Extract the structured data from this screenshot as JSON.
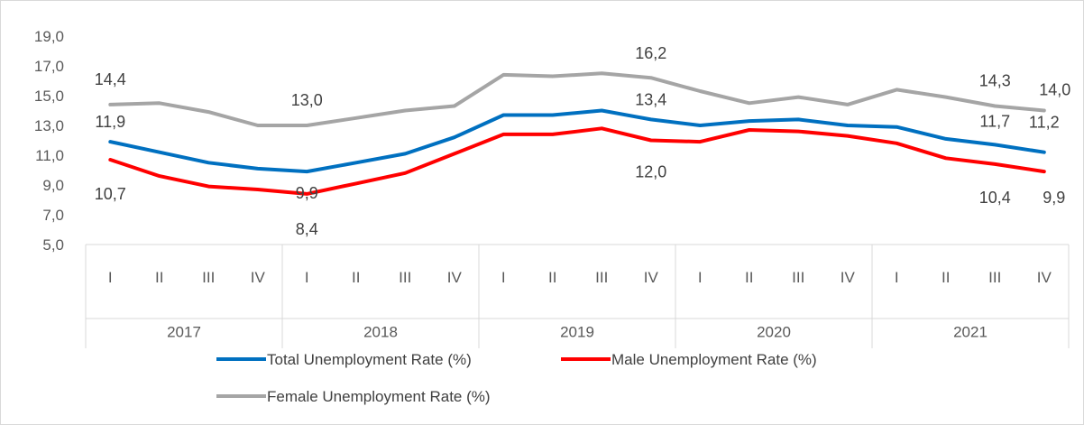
{
  "chart_data": {
    "type": "line",
    "quarters": [
      "I",
      "II",
      "III",
      "IV"
    ],
    "years": [
      "2017",
      "2018",
      "2019",
      "2020",
      "2021"
    ],
    "y_ticks": [
      "19,0",
      "17,0",
      "15,0",
      "13,0",
      "11,0",
      "9,0",
      "7,0",
      "5,0"
    ],
    "ylim": [
      5,
      19
    ],
    "grid": false,
    "legend_position": "bottom",
    "series": [
      {
        "name": "Female Unemployment Rate (%)",
        "color": "#a5a5a5",
        "values": [
          14.4,
          14.5,
          13.9,
          13.0,
          13.0,
          13.5,
          14.0,
          14.3,
          16.4,
          16.3,
          16.5,
          16.2,
          15.3,
          14.5,
          14.9,
          14.4,
          15.4,
          14.9,
          14.3,
          14.0
        ],
        "labels": [
          {
            "index": 0,
            "text": "14,4"
          },
          {
            "index": 4,
            "text": "13,0"
          },
          {
            "index": 11,
            "text": "16,2"
          },
          {
            "index": 18,
            "text": "14,3"
          },
          {
            "index": 19,
            "text": "14,0"
          }
        ]
      },
      {
        "name": "Total Unemployment Rate (%)",
        "color": "#0070c0",
        "values": [
          11.9,
          11.2,
          10.5,
          10.1,
          9.9,
          10.5,
          11.1,
          12.2,
          13.7,
          13.7,
          14.0,
          13.4,
          13.0,
          13.3,
          13.4,
          13.0,
          12.9,
          12.1,
          11.7,
          11.2
        ],
        "labels": [
          {
            "index": 0,
            "text": "11,9"
          },
          {
            "index": 4,
            "text": "9,9"
          },
          {
            "index": 11,
            "text": "13,4"
          },
          {
            "index": 18,
            "text": "11,7"
          },
          {
            "index": 19,
            "text": "11,2"
          }
        ]
      },
      {
        "name": "Male Unemployment Rate (%)",
        "color": "#ff0000",
        "values": [
          10.7,
          9.6,
          8.9,
          8.7,
          8.4,
          9.1,
          9.8,
          11.1,
          12.4,
          12.4,
          12.8,
          12.0,
          11.9,
          12.7,
          12.6,
          12.3,
          11.8,
          10.8,
          10.4,
          9.9
        ],
        "labels": [
          {
            "index": 0,
            "text": "10,7"
          },
          {
            "index": 4,
            "text": "8,4"
          },
          {
            "index": 11,
            "text": "12,0"
          },
          {
            "index": 18,
            "text": "10,4"
          },
          {
            "index": 19,
            "text": "9,9"
          }
        ]
      }
    ],
    "legend": [
      {
        "name": "Total Unemployment Rate (%)",
        "color": "#0070c0"
      },
      {
        "name": "Male Unemployment Rate (%)",
        "color": "#ff0000"
      },
      {
        "name": "Female Unemployment Rate (%)",
        "color": "#a5a5a5"
      }
    ]
  }
}
